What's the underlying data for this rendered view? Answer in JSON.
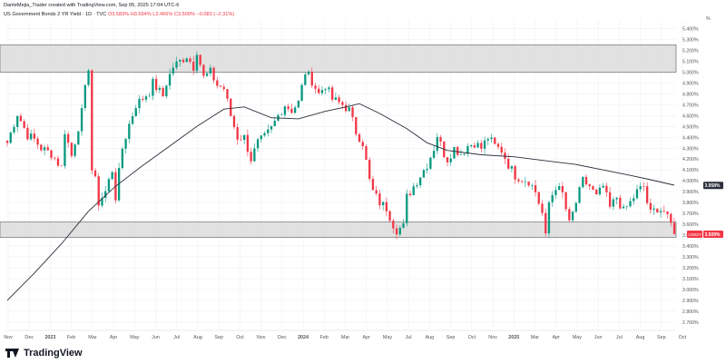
{
  "header": {
    "byline": "DanteMejia_Trader created with TradingView.com, Sep 05, 2025 17:04 UTC-6",
    "symbol": "US Government Bonds 2 YR Yield · 1D · TVC",
    "ohlc": "O3.583% H3.594% L3.466% C3.509% −0.083 (−2.31%)"
  },
  "brand": {
    "name": "TradingView"
  },
  "colors": {
    "up": "#089981",
    "down": "#f23645",
    "ma": "#2a2e39",
    "zone": "#d9d9d9",
    "grid": "#eef0f3"
  },
  "chart_data": {
    "type": "candlestick",
    "price_axis": {
      "unit": "%",
      "ticks": [
        "5.400%",
        "5.300%",
        "5.200%",
        "5.100%",
        "5.000%",
        "4.900%",
        "4.800%",
        "4.700%",
        "4.600%",
        "4.500%",
        "4.400%",
        "4.300%",
        "4.200%",
        "4.100%",
        "4.000%",
        "3.900%",
        "3.800%",
        "3.700%",
        "3.600%",
        "3.500%",
        "3.400%",
        "3.300%",
        "3.200%",
        "3.100%",
        "3.000%",
        "2.900%",
        "2.800%",
        "2.700%"
      ],
      "range": [
        2.64,
        5.48
      ]
    },
    "time_axis": {
      "labels": [
        "Nov",
        "Dec",
        "2023",
        "Feb",
        "Mar",
        "Apr",
        "May",
        "Jun",
        "Jul",
        "Aug",
        "Sep",
        "Oct",
        "Nov",
        "Dec",
        "2024",
        "Feb",
        "Mar",
        "Apr",
        "May",
        "Jul",
        "Aug",
        "Sep",
        "Oct",
        "Nov",
        "2025",
        "Mar",
        "Apr",
        "May",
        "Jun",
        "Jul",
        "Aug",
        "Sep",
        "Oct"
      ]
    },
    "zones": [
      {
        "low": 5.0,
        "high": 5.25
      },
      {
        "low": 3.48,
        "high": 3.62
      }
    ],
    "badges": [
      {
        "label": "",
        "value": "3.958%",
        "price": 3.958,
        "color": "#2a2e39"
      },
      {
        "label": "US02Y",
        "value": "3.509%",
        "price": 3.509,
        "color": "#f23645"
      }
    ],
    "close_path": [
      [
        0,
        4.35
      ],
      [
        3,
        4.62
      ],
      [
        6,
        4.42
      ],
      [
        8,
        4.38
      ],
      [
        10,
        4.3
      ],
      [
        13,
        4.25
      ],
      [
        16,
        4.12
      ],
      [
        17,
        4.46
      ],
      [
        19,
        4.23
      ],
      [
        22,
        4.63
      ],
      [
        23,
        4.84
      ],
      [
        24,
        5.05
      ],
      [
        25,
        4.1
      ],
      [
        26,
        4.0
      ],
      [
        27,
        3.8
      ],
      [
        29,
        3.9
      ],
      [
        31,
        4.1
      ],
      [
        32,
        3.85
      ],
      [
        34,
        4.3
      ],
      [
        36,
        4.52
      ],
      [
        38,
        4.7
      ],
      [
        40,
        4.76
      ],
      [
        42,
        4.82
      ],
      [
        43,
        4.9
      ],
      [
        46,
        4.78
      ],
      [
        47,
        4.9
      ],
      [
        49,
        5.05
      ],
      [
        51,
        5.1
      ],
      [
        53,
        5.15
      ],
      [
        55,
        5.05
      ],
      [
        56,
        5.2
      ],
      [
        58,
        4.95
      ],
      [
        60,
        5.0
      ],
      [
        62,
        4.88
      ],
      [
        64,
        4.85
      ],
      [
        66,
        4.6
      ],
      [
        68,
        4.4
      ],
      [
        70,
        4.4
      ],
      [
        72,
        4.2
      ],
      [
        74,
        4.35
      ],
      [
        76,
        4.4
      ],
      [
        78,
        4.48
      ],
      [
        80,
        4.6
      ],
      [
        82,
        4.7
      ],
      [
        84,
        4.65
      ],
      [
        86,
        4.72
      ],
      [
        88,
        5.0
      ],
      [
        90,
        4.92
      ],
      [
        92,
        4.8
      ],
      [
        94,
        4.88
      ],
      [
        96,
        4.75
      ],
      [
        99,
        4.7
      ],
      [
        101,
        4.65
      ],
      [
        103,
        4.45
      ],
      [
        105,
        4.35
      ],
      [
        107,
        4.0
      ],
      [
        108,
        3.9
      ],
      [
        110,
        3.8
      ],
      [
        112,
        3.75
      ],
      [
        114,
        3.6
      ],
      [
        115,
        3.55
      ],
      [
        117,
        3.58
      ],
      [
        118,
        3.85
      ],
      [
        120,
        3.95
      ],
      [
        122,
        4.05
      ],
      [
        124,
        4.15
      ],
      [
        126,
        4.3
      ],
      [
        127,
        4.42
      ],
      [
        129,
        4.25
      ],
      [
        130,
        4.2
      ],
      [
        132,
        4.3
      ],
      [
        134,
        4.25
      ],
      [
        136,
        4.32
      ],
      [
        138,
        4.35
      ],
      [
        140,
        4.3
      ],
      [
        142,
        4.4
      ],
      [
        144,
        4.32
      ],
      [
        146,
        4.28
      ],
      [
        148,
        4.15
      ],
      [
        150,
        4.05
      ],
      [
        152,
        4.02
      ],
      [
        154,
        4.0
      ],
      [
        156,
        3.9
      ],
      [
        158,
        3.7
      ],
      [
        159,
        3.48
      ],
      [
        160,
        3.8
      ],
      [
        162,
        3.95
      ],
      [
        164,
        3.88
      ],
      [
        166,
        3.6
      ],
      [
        168,
        3.8
      ],
      [
        170,
        4.0
      ],
      [
        172,
        3.95
      ],
      [
        174,
        3.85
      ],
      [
        176,
        3.95
      ],
      [
        178,
        3.75
      ],
      [
        180,
        3.85
      ],
      [
        182,
        3.72
      ],
      [
        184,
        3.8
      ],
      [
        186,
        3.9
      ],
      [
        188,
        3.95
      ],
      [
        189,
        3.8
      ],
      [
        190,
        3.7
      ],
      [
        192,
        3.75
      ],
      [
        194,
        3.72
      ],
      [
        195,
        3.65
      ],
      [
        196,
        3.6
      ],
      [
        197,
        3.509
      ]
    ],
    "moving_average": [
      [
        0,
        2.9
      ],
      [
        8,
        3.15
      ],
      [
        16,
        3.42
      ],
      [
        24,
        3.72
      ],
      [
        32,
        3.95
      ],
      [
        40,
        4.14
      ],
      [
        48,
        4.32
      ],
      [
        56,
        4.5
      ],
      [
        64,
        4.66
      ],
      [
        70,
        4.68
      ],
      [
        78,
        4.58
      ],
      [
        86,
        4.57
      ],
      [
        94,
        4.64
      ],
      [
        100,
        4.68
      ],
      [
        104,
        4.71
      ],
      [
        110,
        4.62
      ],
      [
        118,
        4.48
      ],
      [
        124,
        4.35
      ],
      [
        130,
        4.28
      ],
      [
        140,
        4.24
      ],
      [
        150,
        4.22
      ],
      [
        160,
        4.18
      ],
      [
        168,
        4.15
      ],
      [
        176,
        4.1
      ],
      [
        184,
        4.05
      ],
      [
        190,
        4.01
      ],
      [
        197,
        3.96
      ]
    ]
  }
}
